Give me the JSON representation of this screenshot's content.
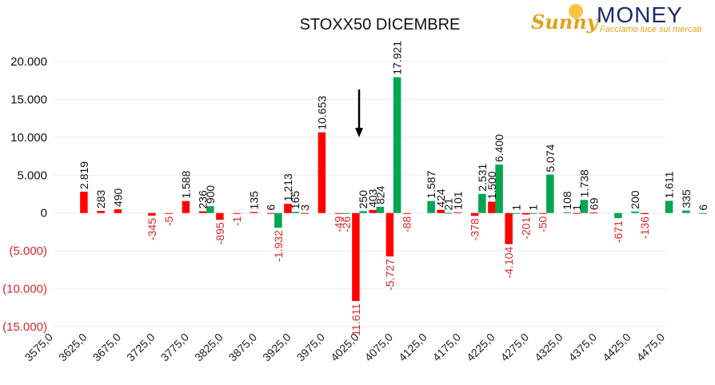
{
  "logo": {
    "word_a": "Sunny",
    "word_b": "MONEY",
    "tagline": "Facciamo luce sui mercati",
    "color_a": "#e0a21b",
    "color_b": "#1a2a6c"
  },
  "chart_data": {
    "type": "bar",
    "title": "STOXX50 DICEMBRE",
    "xlabel": "",
    "ylabel": "",
    "ylim": [
      -15000,
      20000
    ],
    "y_ticks": [
      {
        "value": 20000,
        "label": "20.000"
      },
      {
        "value": 15000,
        "label": "15.000"
      },
      {
        "value": 10000,
        "label": "10.000"
      },
      {
        "value": 5000,
        "label": "5.000"
      },
      {
        "value": 0,
        "label": "0"
      },
      {
        "value": -5000,
        "label": "(5.000)"
      },
      {
        "value": -10000,
        "label": "(10.000)"
      },
      {
        "value": -15000,
        "label": "(15.000)"
      }
    ],
    "x_tick_labels": [
      "3575,0",
      "3625,0",
      "3675,0",
      "3725,0",
      "3775,0",
      "3825,0",
      "3875,0",
      "3925,0",
      "3975,0",
      "4025,0",
      "4075,0",
      "4125,0",
      "4175,0",
      "4225,0",
      "4275,0",
      "4325,0",
      "4375,0",
      "4425,0",
      "4475,0"
    ],
    "grid": true,
    "colors": {
      "positive": "#00a651",
      "negative": "#ff0000",
      "positive_label": "#111111",
      "negative_label": "#d9262b",
      "arrow": "#000000"
    },
    "annotation": {
      "type": "arrow-down",
      "at_strike": 4025
    },
    "series": [
      {
        "values": [
          {
            "strike": 3625,
            "red": 2819
          },
          {
            "strike": 3650,
            "red": 283
          },
          {
            "strike": 3675,
            "red": 490
          },
          {
            "strike": 3725,
            "red": -345
          },
          {
            "strike": 3750,
            "red": -5
          },
          {
            "strike": 3775,
            "red": 1588
          },
          {
            "strike": 3800,
            "red": 236,
            "green": 900
          },
          {
            "strike": 3825,
            "red": -895
          },
          {
            "strike": 3850,
            "red": -1
          },
          {
            "strike": 3875,
            "red": 135
          },
          {
            "strike": 3900,
            "red": 6,
            "green": -1932
          },
          {
            "strike": 3925,
            "red": 1213,
            "green": 165
          },
          {
            "strike": 3950,
            "red": 3
          },
          {
            "strike": 3975,
            "red": 10653
          },
          {
            "strike": 4000,
            "red": -49,
            "green": -26
          },
          {
            "strike": 4025,
            "red": -11611,
            "green": 250
          },
          {
            "strike": 4050,
            "red": 403,
            "green": 824
          },
          {
            "strike": 4075,
            "red": -5727,
            "green": 17921
          },
          {
            "strike": 4100,
            "red": -88
          },
          {
            "strike": 4125,
            "green": 1587
          },
          {
            "strike": 4150,
            "red": 424,
            "green": 21
          },
          {
            "strike": 4175,
            "red": 101
          },
          {
            "strike": 4200,
            "red": -378,
            "green": 2531
          },
          {
            "strike": 4225,
            "red": 1500,
            "green": 6400
          },
          {
            "strike": 4250,
            "red": -4104,
            "green": 1
          },
          {
            "strike": 4275,
            "red": -201,
            "green": 1
          },
          {
            "strike": 4300,
            "red": -50,
            "green": 5074
          },
          {
            "strike": 4325,
            "green": 108
          },
          {
            "strike": 4350,
            "red": 1,
            "green": 1738
          },
          {
            "strike": 4375,
            "red": 69
          },
          {
            "strike": 4400,
            "green": -671
          },
          {
            "strike": 4425,
            "green": 200
          },
          {
            "strike": 4450,
            "red": -136
          },
          {
            "strike": 4475,
            "green": 1611
          },
          {
            "strike": 4500,
            "green": 335
          },
          {
            "strike": 4525,
            "green": 6
          }
        ]
      }
    ]
  }
}
